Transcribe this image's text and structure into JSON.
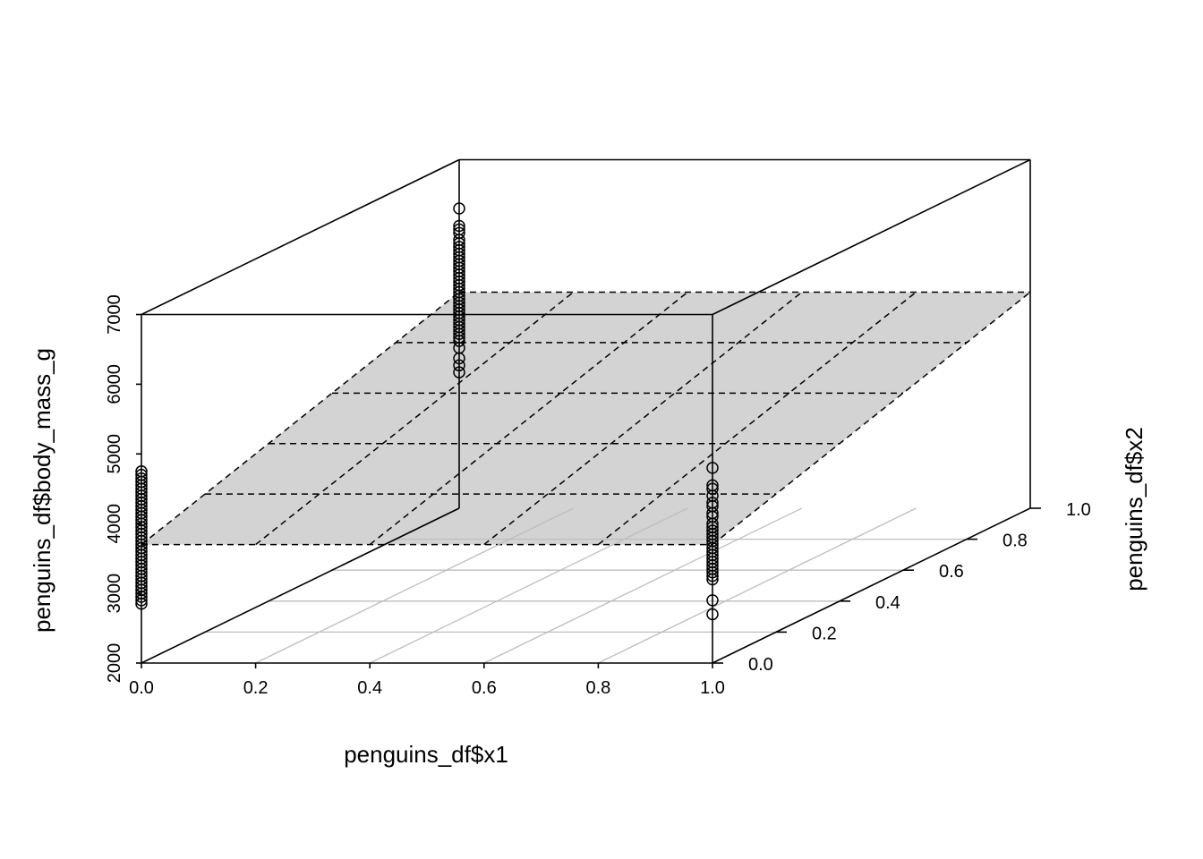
{
  "chart_data": {
    "type": "scatter",
    "projection": "3d",
    "title": "",
    "xlabel": "penguins_df$x1",
    "ylabel": "penguins_df$x2",
    "zlabel": "penguins_df$body_mass_g",
    "xlim": [
      0,
      1
    ],
    "ylim": [
      0,
      1
    ],
    "zlim": [
      2000,
      7000
    ],
    "x_ticks": [
      "0.0",
      "0.2",
      "0.4",
      "0.6",
      "0.8",
      "1.0"
    ],
    "y_ticks": [
      "0.0",
      "0.2",
      "0.4",
      "0.6",
      "0.8",
      "1.0"
    ],
    "z_ticks": [
      "2000",
      "3000",
      "4000",
      "5000",
      "6000",
      "7000"
    ],
    "floor_grid": true,
    "regression_plane": {
      "intercept": 3700,
      "x1_coef": 0,
      "x2_coef": 1400,
      "fill": "#d3d3d3",
      "grid_style": "dashed"
    },
    "colors": {
      "points": "#000000",
      "plane": "#d3d3d3",
      "floor_grid": "#bebebe"
    },
    "series": [
      {
        "x1": 0,
        "x2": 0,
        "values": [
          2850,
          2900,
          2950,
          3000,
          3050,
          3100,
          3150,
          3200,
          3250,
          3300,
          3350,
          3400,
          3450,
          3500,
          3550,
          3600,
          3650,
          3700,
          3750,
          3800,
          3850,
          3900,
          3950,
          4000,
          4050,
          4100,
          4150,
          4200,
          4250,
          4300,
          4350,
          4400,
          4450,
          4500,
          4550,
          4600,
          4650,
          4700,
          4750
        ]
      },
      {
        "x1": 0,
        "x2": 1,
        "values": [
          3950,
          4050,
          4150,
          4300,
          4400,
          4450,
          4500,
          4550,
          4600,
          4650,
          4700,
          4750,
          4800,
          4850,
          4900,
          4950,
          5000,
          5050,
          5100,
          5150,
          5200,
          5250,
          5300,
          5350,
          5400,
          5450,
          5500,
          5550,
          5600,
          5650,
          5700,
          5750,
          5800,
          5850,
          5950,
          6000,
          6050,
          6300
        ]
      },
      {
        "x1": 1,
        "x2": 0,
        "values": [
          2700,
          2900,
          3200,
          3250,
          3300,
          3350,
          3400,
          3450,
          3500,
          3550,
          3600,
          3650,
          3700,
          3750,
          3800,
          3850,
          3900,
          3950,
          4000,
          4100,
          4150,
          4250,
          4300,
          4400,
          4500,
          4550,
          4800
        ]
      }
    ]
  }
}
